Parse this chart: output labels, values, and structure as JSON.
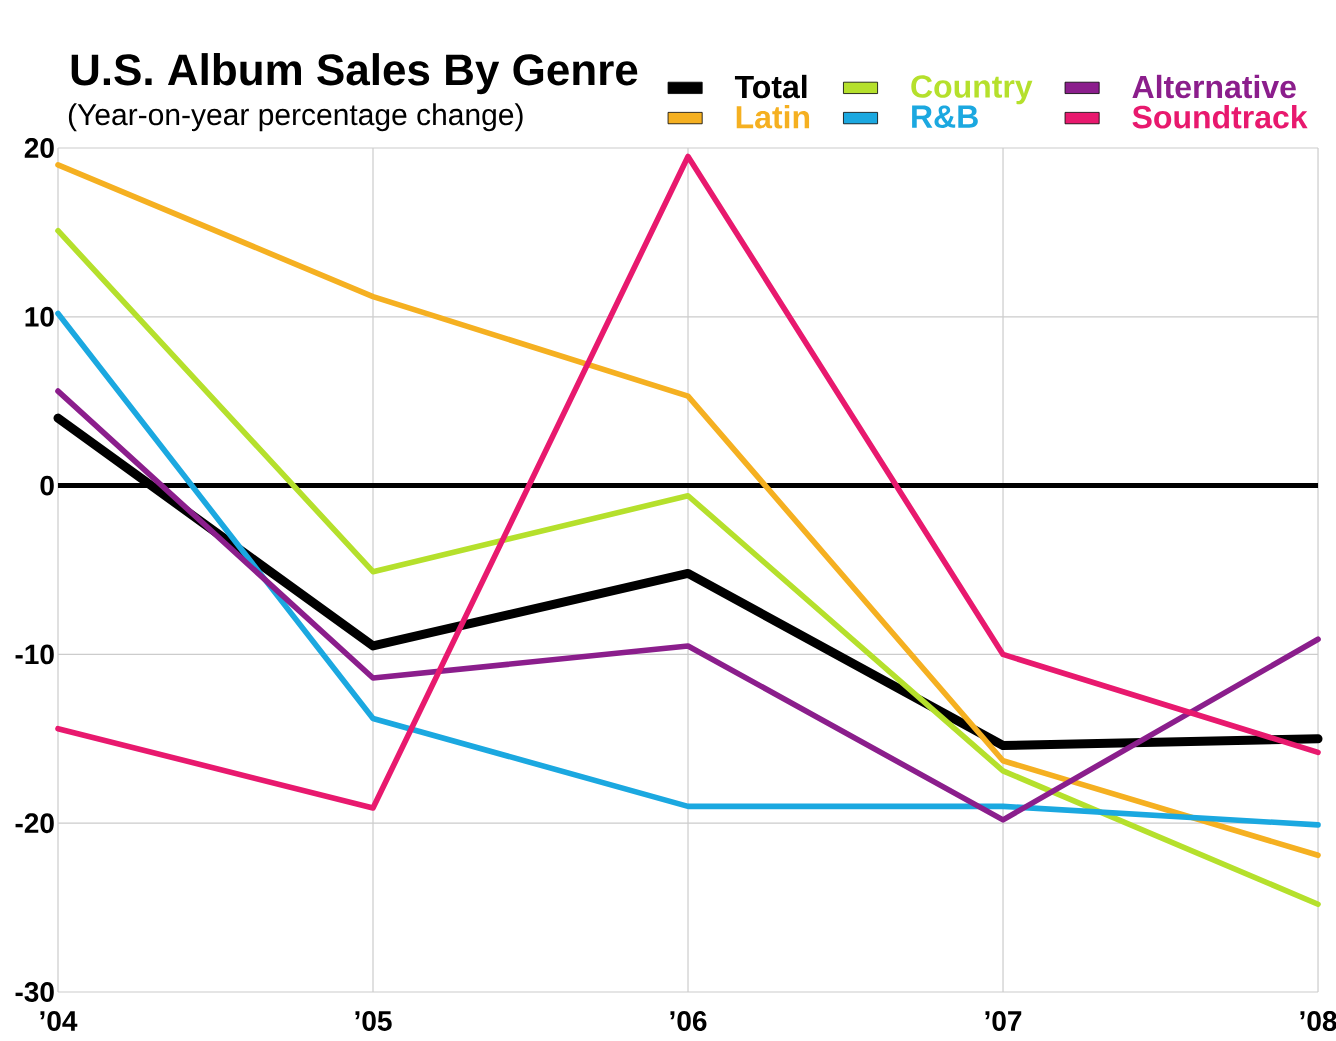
{
  "chart_data": {
    "type": "line",
    "title": "U.S. Album Sales By Genre",
    "subtitle": "(Year-on-year percentage change)",
    "categories": [
      "’04",
      "’05",
      "’06",
      "’07",
      "’08"
    ],
    "series": [
      {
        "name": "Total",
        "color": "#000000",
        "values": [
          4,
          -9.5,
          -5.2,
          -15.4,
          -15.0
        ]
      },
      {
        "name": "Latin",
        "color": "#f5b021",
        "values": [
          19.0,
          11.2,
          5.3,
          -16.3,
          -21.9
        ]
      },
      {
        "name": "Country",
        "color": "#b5e02c",
        "values": [
          15.1,
          -5.1,
          -0.6,
          -16.9,
          -24.8
        ]
      },
      {
        "name": "R&B",
        "color": "#1ba8e0",
        "values": [
          10.2,
          -13.8,
          -19.0,
          -19.0,
          -20.1
        ]
      },
      {
        "name": "Alternative",
        "color": "#8b1e8c",
        "values": [
          5.6,
          -11.4,
          -9.5,
          -19.8,
          -9.1
        ]
      },
      {
        "name": "Soundtrack",
        "color": "#e8196e",
        "values": [
          -14.4,
          -19.1,
          19.5,
          -10.0,
          -15.8
        ]
      }
    ],
    "ylim": [
      -30,
      20
    ],
    "yticks": [
      -30,
      -20,
      -10,
      0,
      10,
      20
    ],
    "ref_lines": [
      {
        "axis": "y",
        "value": 0,
        "color": "#000000"
      }
    ],
    "grid": true,
    "legend": "top right",
    "marker": "none",
    "line_style": "solid"
  }
}
